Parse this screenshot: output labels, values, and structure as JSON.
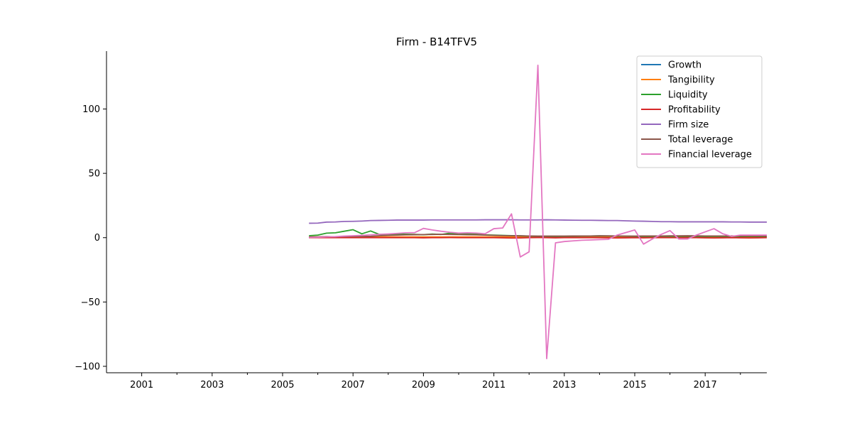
{
  "chart_data": {
    "type": "line",
    "title": "Firm - B14TFV5",
    "xlabel": "",
    "ylabel": "",
    "xlim": [
      2000.0,
      2018.75
    ],
    "ylim": [
      -105,
      145
    ],
    "x_ticks": [
      2001,
      2003,
      2005,
      2007,
      2009,
      2011,
      2013,
      2015,
      2017
    ],
    "y_ticks": [
      -100,
      -50,
      0,
      50,
      100
    ],
    "y_tick_labels": [
      "−100",
      "−50",
      "0",
      "50",
      "100"
    ],
    "grid": false,
    "legend_position": "top-right",
    "x": [
      2005.75,
      2006.0,
      2006.25,
      2006.5,
      2006.75,
      2007.0,
      2007.25,
      2007.5,
      2007.75,
      2008.0,
      2008.25,
      2008.5,
      2008.75,
      2009.0,
      2009.25,
      2009.5,
      2009.75,
      2010.0,
      2010.25,
      2010.5,
      2010.75,
      2011.0,
      2011.25,
      2011.5,
      2011.75,
      2012.0,
      2012.25,
      2012.5,
      2012.75,
      2013.0,
      2013.25,
      2013.5,
      2013.75,
      2014.0,
      2014.25,
      2014.5,
      2014.75,
      2015.0,
      2015.25,
      2015.5,
      2015.75,
      2016.0,
      2016.25,
      2016.5,
      2016.75,
      2017.0,
      2017.25,
      2017.5,
      2017.75,
      2018.0,
      2018.25,
      2018.5,
      2018.75
    ],
    "series": [
      {
        "name": "Growth",
        "color": "#1f77b4",
        "values": [
          0.1,
          0.2,
          0.3,
          0.1,
          0.2,
          0.1,
          0.2,
          0.3,
          0.2,
          0.1,
          0.2,
          0.1,
          0.2,
          0.3,
          0.1,
          0.2,
          0.1,
          0.2,
          0.1,
          0.3,
          0.2,
          0.1,
          0.2,
          0.1,
          0.2,
          0.1,
          0.2,
          0.3,
          0.1,
          0.2,
          0.1,
          0.2,
          0.1,
          0.2,
          0.1,
          0.2,
          0.1,
          0.2,
          0.1,
          0.2,
          0.1,
          0.2,
          0.1,
          0.2,
          0.1,
          0.2,
          0.1,
          0.2,
          0.1,
          0.2,
          0.1,
          0.2,
          0.1
        ]
      },
      {
        "name": "Tangibility",
        "color": "#ff7f0e",
        "values": [
          0.6,
          0.6,
          0.6,
          0.6,
          0.6,
          0.6,
          0.6,
          0.6,
          0.6,
          0.6,
          0.6,
          0.6,
          0.6,
          0.6,
          0.6,
          0.6,
          0.6,
          0.6,
          0.6,
          0.6,
          0.6,
          0.6,
          0.6,
          0.6,
          0.6,
          0.6,
          0.6,
          0.6,
          0.6,
          0.6,
          0.6,
          0.6,
          0.6,
          0.6,
          0.6,
          0.6,
          0.6,
          0.6,
          0.6,
          0.6,
          0.6,
          0.6,
          0.6,
          0.6,
          0.6,
          0.6,
          0.6,
          0.6,
          0.6,
          0.6,
          0.6,
          0.6,
          0.6
        ]
      },
      {
        "name": "Liquidity",
        "color": "#2ca02c",
        "values": [
          1.5,
          2.0,
          3.5,
          3.8,
          5.0,
          6.2,
          3.0,
          5.2,
          2.5,
          2.6,
          2.8,
          2.7,
          2.5,
          2.3,
          2.8,
          2.5,
          3.5,
          3.2,
          3.0,
          2.8,
          2.2,
          2.0,
          1.8,
          1.6,
          1.4,
          1.2,
          1.0,
          1.0,
          1.0,
          1.0,
          1.1,
          1.2,
          1.3,
          1.4,
          1.3,
          1.2,
          1.1,
          1.0,
          1.0,
          1.0,
          1.0,
          1.0,
          1.0,
          1.0,
          1.0,
          1.0,
          1.0,
          1.0,
          1.0,
          1.0,
          1.0,
          1.0,
          1.0
        ]
      },
      {
        "name": "Profitability",
        "color": "#d62728",
        "values": [
          0.0,
          0.0,
          0.1,
          0.0,
          0.1,
          0.0,
          0.0,
          0.1,
          0.0,
          0.0,
          0.1,
          0.0,
          0.0,
          -0.1,
          0.0,
          0.0,
          0.1,
          0.0,
          0.0,
          0.0,
          0.0,
          0.0,
          -0.1,
          -0.3,
          -0.2,
          0.0,
          0.1,
          0.0,
          -0.1,
          0.0,
          0.1,
          0.0,
          0.0,
          0.0,
          -0.1,
          -0.2,
          -0.1,
          0.0,
          -0.1,
          0.0,
          0.1,
          0.0,
          0.0,
          0.1,
          0.0,
          -0.1,
          -0.2,
          -0.1,
          0.0,
          -0.1,
          -0.2,
          -0.1,
          0.0
        ]
      },
      {
        "name": "Firm size",
        "color": "#9467bd",
        "values": [
          11.2,
          11.3,
          12.1,
          12.2,
          12.6,
          12.7,
          12.9,
          13.3,
          13.4,
          13.5,
          13.7,
          13.7,
          13.7,
          13.7,
          13.8,
          13.8,
          13.8,
          13.8,
          13.8,
          13.8,
          13.9,
          13.9,
          13.9,
          13.9,
          13.8,
          13.8,
          13.8,
          13.9,
          13.8,
          13.7,
          13.6,
          13.5,
          13.5,
          13.4,
          13.3,
          13.3,
          13.1,
          12.9,
          12.8,
          12.6,
          12.4,
          12.4,
          12.3,
          12.3,
          12.3,
          12.3,
          12.3,
          12.3,
          12.2,
          12.2,
          12.1,
          12.1,
          12.1
        ]
      },
      {
        "name": "Total leverage",
        "color": "#8c564b",
        "values": [
          0.5,
          0.6,
          0.8,
          0.7,
          0.9,
          1.0,
          1.0,
          1.1,
          1.5,
          1.8,
          2.0,
          2.2,
          2.3,
          2.4,
          2.5,
          2.6,
          2.5,
          2.4,
          2.3,
          2.2,
          2.0,
          1.8,
          1.6,
          1.5,
          1.4,
          1.3,
          1.2,
          1.2,
          1.2,
          1.2,
          1.3,
          1.3,
          1.3,
          1.4,
          1.4,
          1.3,
          1.2,
          1.2,
          1.3,
          1.3,
          1.3,
          1.4,
          1.4,
          1.5,
          1.4,
          1.3,
          1.3,
          1.3,
          1.3,
          1.3,
          1.3,
          1.3,
          1.3
        ]
      },
      {
        "name": "Financial leverage",
        "color": "#e377c2",
        "values": [
          0.2,
          0.3,
          0.6,
          0.8,
          1.2,
          1.5,
          1.8,
          2.2,
          2.6,
          2.9,
          3.3,
          3.8,
          3.9,
          7.2,
          6.0,
          5.0,
          4.2,
          3.6,
          3.8,
          3.6,
          3.0,
          7.0,
          7.5,
          18.5,
          -15.0,
          -11.0,
          134.0,
          -94.0,
          -4.0,
          -3.0,
          -2.5,
          -2.0,
          -1.8,
          -1.5,
          -1.3,
          2.0,
          4.0,
          6.0,
          -5.0,
          -1.0,
          2.5,
          5.5,
          -1.0,
          -1.0,
          2.0,
          4.5,
          7.0,
          3.0,
          1.0,
          2.0,
          2.0,
          2.0,
          2.0
        ]
      }
    ]
  }
}
